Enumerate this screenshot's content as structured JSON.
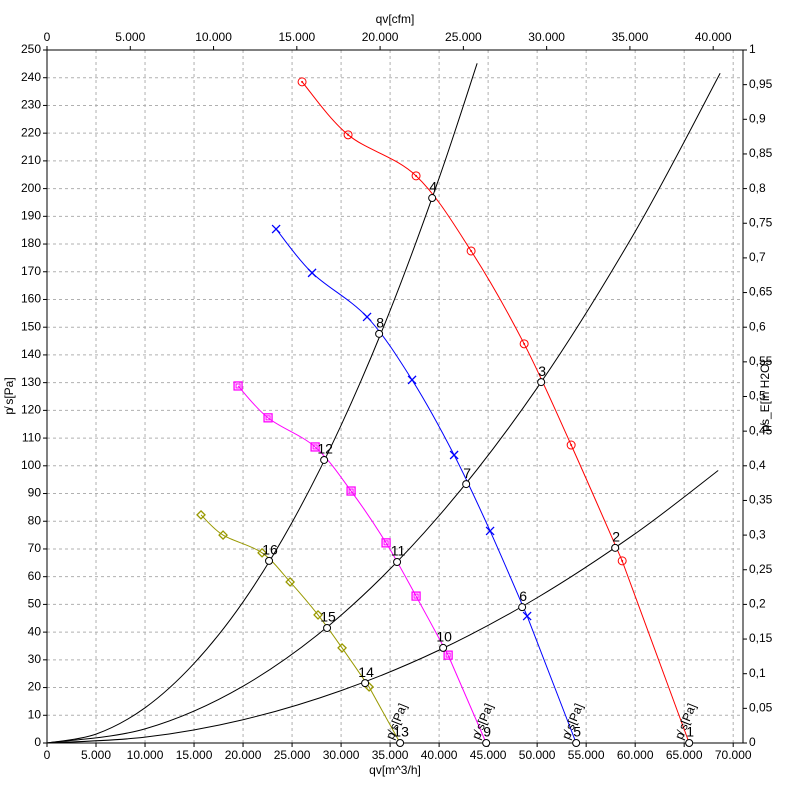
{
  "chart_data": {
    "type": "line",
    "x_label": "qv[m^3/h]",
    "x2_label": "qv[cfm]",
    "y_label": "p̸ s[Pa]",
    "y2_label": "p̸s_E[in H2O]",
    "grid": true,
    "xlim": [
      0,
      71000
    ],
    "xticks": [
      0,
      {
        "value": 5000,
        "label": "5.000"
      },
      {
        "value": 10000,
        "label": "10.000"
      },
      {
        "value": 15000,
        "label": "15.000"
      },
      {
        "value": 20000,
        "label": "20.000"
      },
      {
        "value": 25000,
        "label": "25.000"
      },
      {
        "value": 30000,
        "label": "30.000"
      },
      {
        "value": 35000,
        "label": "35.000"
      },
      {
        "value": 40000,
        "label": "40.000"
      },
      {
        "value": 45000,
        "label": "45.000"
      },
      {
        "value": 50000,
        "label": "50.000"
      },
      {
        "value": 55000,
        "label": "55.000"
      },
      {
        "value": 60000,
        "label": "60.000"
      },
      {
        "value": 65000,
        "label": "65.000"
      },
      {
        "value": 70000,
        "label": "70.000"
      }
    ],
    "x2lim": [
      0,
      41790
    ],
    "x2ticks": [
      0,
      {
        "value": 5000,
        "label": "5.000"
      },
      {
        "value": 10000,
        "label": "10.000"
      },
      {
        "value": 15000,
        "label": "15.000"
      },
      {
        "value": 20000,
        "label": "20.000"
      },
      {
        "value": 25000,
        "label": "25.000"
      },
      {
        "value": 30000,
        "label": "30.000"
      },
      {
        "value": 35000,
        "label": "35.000"
      },
      {
        "value": 40000,
        "label": "40.000"
      }
    ],
    "ylim": [
      0,
      250
    ],
    "yticks": [
      0,
      10,
      20,
      30,
      40,
      50,
      60,
      70,
      80,
      90,
      100,
      110,
      120,
      130,
      140,
      150,
      160,
      170,
      180,
      190,
      200,
      210,
      220,
      230,
      240,
      250
    ],
    "y2lim": [
      0,
      1
    ],
    "y2ticks": [
      0,
      {
        "value": 0.05,
        "label": "0,05"
      },
      {
        "value": 0.1,
        "label": "0,1"
      },
      {
        "value": 0.15,
        "label": "0,15"
      },
      {
        "value": 0.2,
        "label": "0,2"
      },
      {
        "value": 0.25,
        "label": "0,25"
      },
      {
        "value": 0.3,
        "label": "0,3"
      },
      {
        "value": 0.35,
        "label": "0,35"
      },
      {
        "value": 0.4,
        "label": "0,4"
      },
      {
        "value": 0.45,
        "label": "0,45"
      },
      {
        "value": 0.5,
        "label": "0,5"
      },
      {
        "value": 0.55,
        "label": "0,55"
      },
      {
        "value": 0.6,
        "label": "0,6"
      },
      {
        "value": 0.65,
        "label": "0,65"
      },
      {
        "value": 0.7,
        "label": "0,7"
      },
      {
        "value": 0.75,
        "label": "0,75"
      },
      {
        "value": 0.8,
        "label": "0,8"
      },
      {
        "value": 0.85,
        "label": "0,85"
      },
      {
        "value": 0.9,
        "label": "0,9"
      },
      {
        "value": 0.95,
        "label": "0,95"
      },
      1
    ],
    "series": [
      {
        "name": "p̸ s[Pa]",
        "color": "#ff0000",
        "marker": "circle",
        "x": [
          26020,
          30715,
          37650,
          43265,
          48675,
          53470,
          58675
        ],
        "values": [
          238.5,
          219.4,
          204.6,
          177.5,
          144,
          107.5,
          65.7
        ],
        "points": [
          {
            "label": "4",
            "x": 39290,
            "y": 196.6
          },
          {
            "label": "3",
            "x": 50410,
            "y": 130.2
          },
          {
            "label": "2",
            "x": 57960,
            "y": 70.4
          },
          {
            "label": "1",
            "x": 65510,
            "y": 0
          }
        ]
      },
      {
        "name": "p̸ s[Pa]",
        "color": "#0000ff",
        "marker": "cross",
        "x": [
          23370,
          27040,
          32650,
          37240,
          41530,
          45200,
          48980
        ],
        "values": [
          185.4,
          169.6,
          153.7,
          131,
          103.9,
          76.5,
          45.8
        ],
        "points": [
          {
            "label": "8",
            "x": 33880,
            "y": 147.6
          },
          {
            "label": "7",
            "x": 42760,
            "y": 93.4
          },
          {
            "label": "6",
            "x": 48470,
            "y": 49
          },
          {
            "label": "5",
            "x": 53980,
            "y": 0
          }
        ]
      },
      {
        "name": "p̸ s[Pa]",
        "color": "#ff00ff",
        "marker": "square",
        "x": [
          19490,
          22550,
          27350,
          31020,
          34590,
          37650,
          40920
        ],
        "values": [
          128.8,
          117.3,
          106.8,
          90.9,
          72.2,
          53,
          31.7
        ],
        "points": [
          {
            "label": "12",
            "x": 28270,
            "y": 102.1
          },
          {
            "label": "11",
            "x": 35710,
            "y": 65.3
          },
          {
            "label": "10",
            "x": 40410,
            "y": 34.3
          },
          {
            "label": "9",
            "x": 44800,
            "y": 0
          }
        ]
      },
      {
        "name": "p̸ s[Pa]",
        "color": "#999900",
        "marker": "diamond",
        "x": [
          15710,
          17960,
          21940,
          24800,
          27650,
          30100,
          32860
        ],
        "values": [
          82.3,
          75,
          68.6,
          58.1,
          46.2,
          34.3,
          20.2
        ],
        "points": [
          {
            "label": "16",
            "x": 22650,
            "y": 65.7
          },
          {
            "label": "15",
            "x": 28570,
            "y": 41.5
          },
          {
            "label": "14",
            "x": 32450,
            "y": 21.6
          },
          {
            "label": "13",
            "x": 36020,
            "y": 0
          }
        ]
      }
    ],
    "system_curves": [
      {
        "color": "#000000",
        "x": [
          0,
          5000,
          10000,
          15000,
          20000,
          25000,
          30000,
          35000,
          40000,
          43880
        ],
        "values": [
          0,
          3.2,
          12.7,
          28.7,
          50.9,
          79.6,
          114.6,
          156,
          203.8,
          245.2
        ]
      },
      {
        "color": "#000000",
        "x": [
          0,
          10000,
          20000,
          30000,
          40000,
          50000,
          60000,
          68670
        ],
        "values": [
          0,
          5.1,
          20.5,
          46.1,
          82,
          128.1,
          184.5,
          241.6
        ]
      },
      {
        "color": "#000000",
        "x": [
          0,
          10000,
          20000,
          30000,
          40000,
          50000,
          60000,
          68470
        ],
        "values": [
          0,
          2.1,
          8.4,
          18.9,
          33.5,
          52.4,
          75.5,
          98.3
        ]
      }
    ]
  }
}
